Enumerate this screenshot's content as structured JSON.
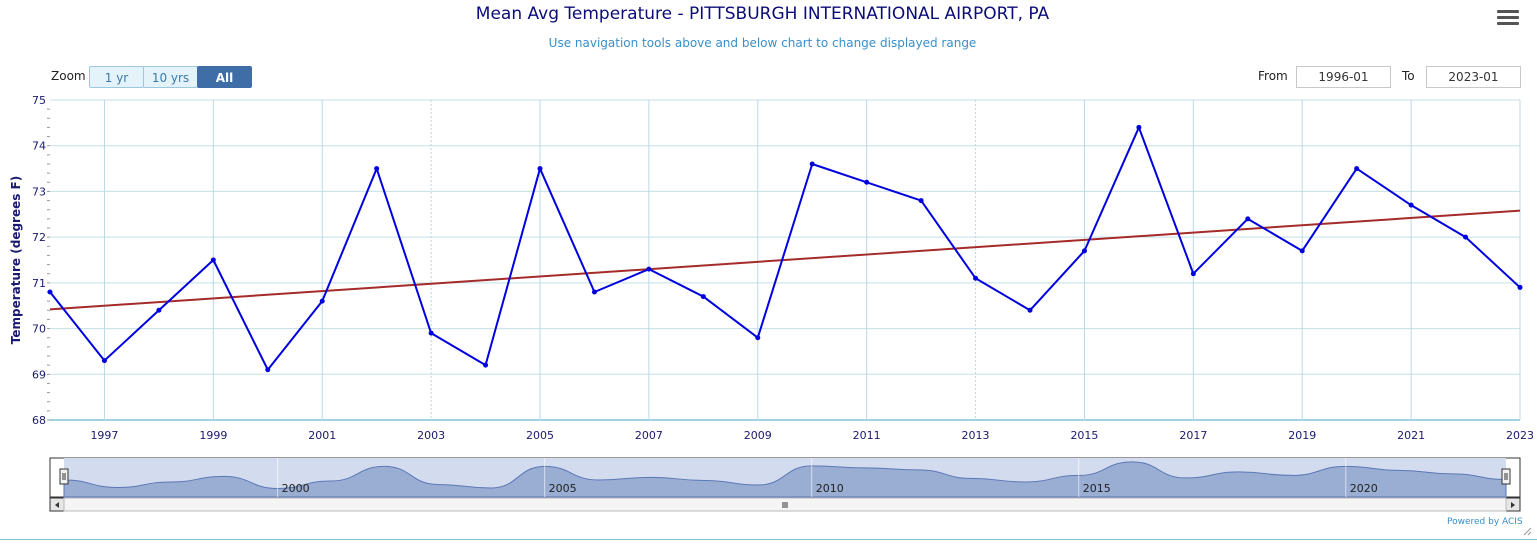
{
  "header": {
    "title": "Mean Avg Temperature - PITTSBURGH INTERNATIONAL AIRPORT, PA",
    "subtitle": "Use navigation tools above and below chart to change displayed range"
  },
  "zoom": {
    "label": "Zoom",
    "buttons": [
      {
        "label": "1 yr",
        "active": false
      },
      {
        "label": "10 yrs",
        "active": false
      },
      {
        "label": "All",
        "active": true
      }
    ]
  },
  "range": {
    "from_label": "From",
    "from_value": "1996-01",
    "to_label": "To",
    "to_value": "2023-01"
  },
  "credit": "Powered by ACIS",
  "chart_data": {
    "type": "line",
    "title": "Mean Avg Temperature - PITTSBURGH INTERNATIONAL AIRPORT, PA",
    "ylabel": "Temperature (degrees F)",
    "xlabel": "",
    "ylim": [
      68,
      75
    ],
    "xlim": [
      1996,
      2023
    ],
    "yticks": [
      68,
      69,
      70,
      71,
      72,
      73,
      74,
      75
    ],
    "xticks": [
      1997,
      1999,
      2001,
      2003,
      2005,
      2007,
      2009,
      2011,
      2013,
      2015,
      2017,
      2019,
      2021,
      2023
    ],
    "grid": true,
    "series": [
      {
        "values": [
          70.8,
          69.3,
          70.4,
          71.5,
          69.1,
          70.6,
          73.5,
          69.9,
          69.2,
          73.5,
          70.8,
          71.3,
          70.7,
          69.8,
          73.6,
          73.2,
          72.8,
          71.1,
          70.4,
          71.7,
          74.4,
          71.2,
          72.4,
          71.7,
          73.5,
          72.7,
          72.0,
          70.9
        ],
        "x": [
          1996,
          1997,
          1998,
          1999,
          2000,
          2001,
          2002,
          2003,
          2004,
          2005,
          2006,
          2007,
          2008,
          2009,
          2010,
          2011,
          2012,
          2013,
          2014,
          2015,
          2016,
          2017,
          2018,
          2019,
          2020,
          2021,
          2022,
          2023
        ],
        "color": "#0000e0"
      }
    ],
    "trend": {
      "x": [
        1996,
        2023
      ],
      "y": [
        70.42,
        72.58
      ],
      "color": "#a52a2a"
    },
    "navigator": {
      "labels": [
        "2000",
        "2005",
        "2010",
        "2015",
        "2020"
      ],
      "fill": "#9aadd3",
      "selection_fill": "#d3dcef"
    }
  }
}
